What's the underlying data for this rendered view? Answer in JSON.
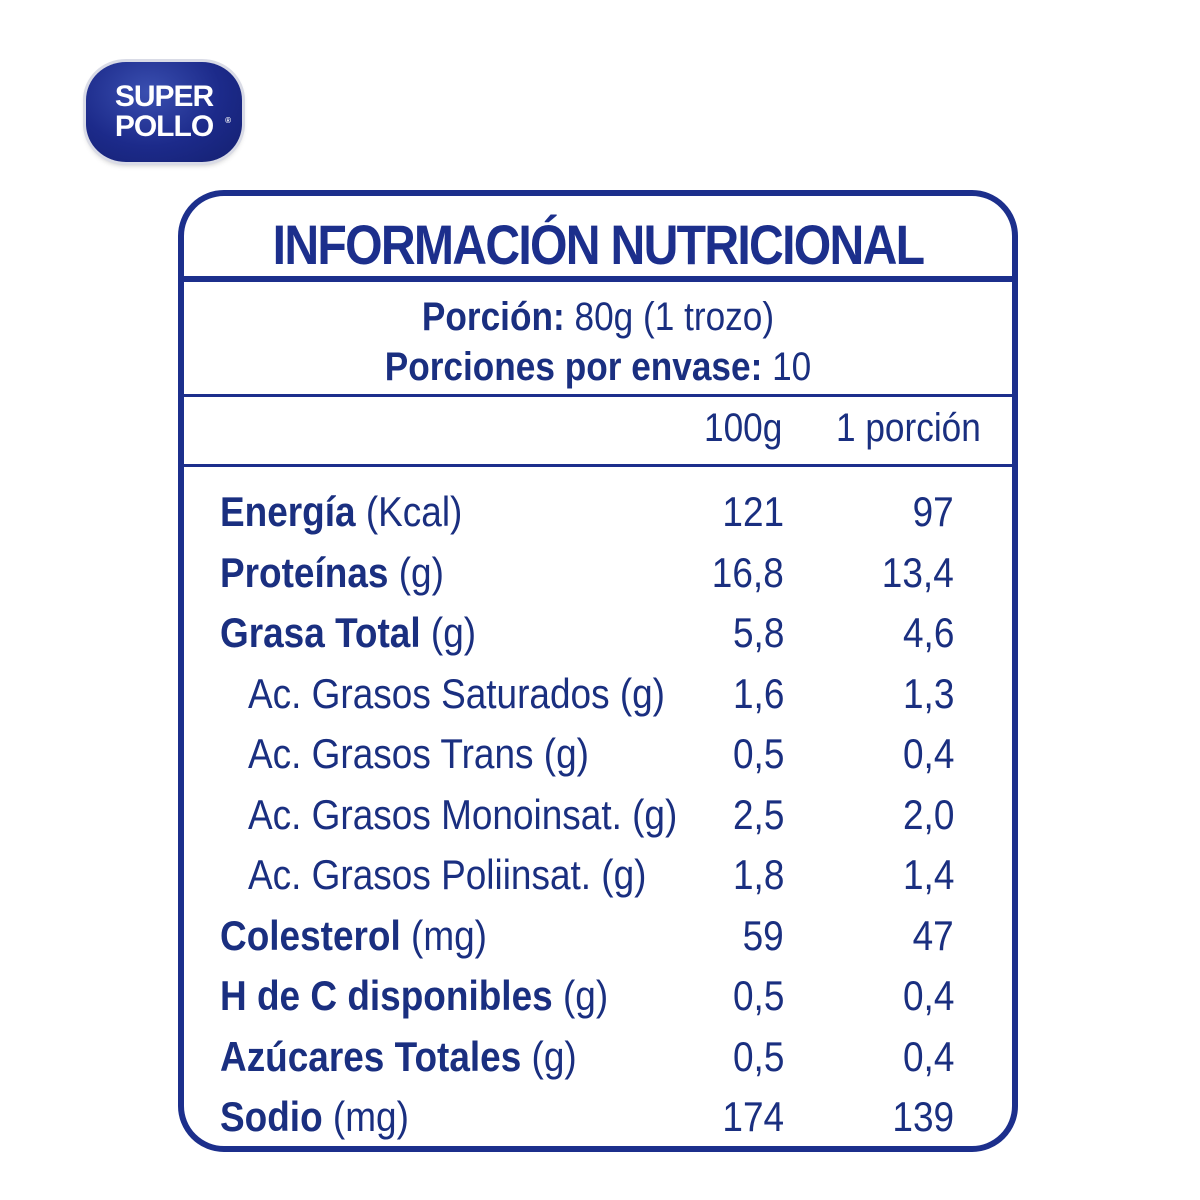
{
  "brand": {
    "line1": "SUPER",
    "line2": "POLLO",
    "reg": "®"
  },
  "label": {
    "title": "INFORMACIÓN NUTRICIONAL",
    "serving_label": "Porción:",
    "serving_value": "80g (1 trozo)",
    "servings_label": "Porciones por envase:",
    "servings_value": "10",
    "col1": "100g",
    "col2": "1 porción"
  },
  "rows": [
    {
      "name": "Energía",
      "unit": "(Kcal)",
      "v100": "121",
      "vport": "97",
      "sub": false
    },
    {
      "name": "Proteínas",
      "unit": "(g)",
      "v100": "16,8",
      "vport": "13,4",
      "sub": false
    },
    {
      "name": "Grasa Total",
      "unit": "(g)",
      "v100": "5,8",
      "vport": "4,6",
      "sub": false
    },
    {
      "name": "Ac. Grasos Saturados",
      "unit": "(g)",
      "v100": "1,6",
      "vport": "1,3",
      "sub": true
    },
    {
      "name": "Ac. Grasos Trans",
      "unit": "(g)",
      "v100": "0,5",
      "vport": "0,4",
      "sub": true
    },
    {
      "name": "Ac. Grasos Monoinsat.",
      "unit": "(g)",
      "v100": "2,5",
      "vport": "2,0",
      "sub": true
    },
    {
      "name": "Ac. Grasos Poliinsat.",
      "unit": "(g)",
      "v100": "1,8",
      "vport": "1,4",
      "sub": true
    },
    {
      "name": "Colesterol",
      "unit": "(mg)",
      "v100": "59",
      "vport": "47",
      "sub": false
    },
    {
      "name": "H de C disponibles",
      "unit": "(g)",
      "v100": "0,5",
      "vport": "0,4",
      "sub": false
    },
    {
      "name": "Azúcares Totales",
      "unit": "(g)",
      "v100": "0,5",
      "vport": "0,4",
      "sub": false
    },
    {
      "name": "Sodio",
      "unit": "(mg)",
      "v100": "174",
      "vport": "139",
      "sub": false
    }
  ],
  "colors": {
    "primary": "#1c2f8c",
    "background": "#ffffff"
  }
}
